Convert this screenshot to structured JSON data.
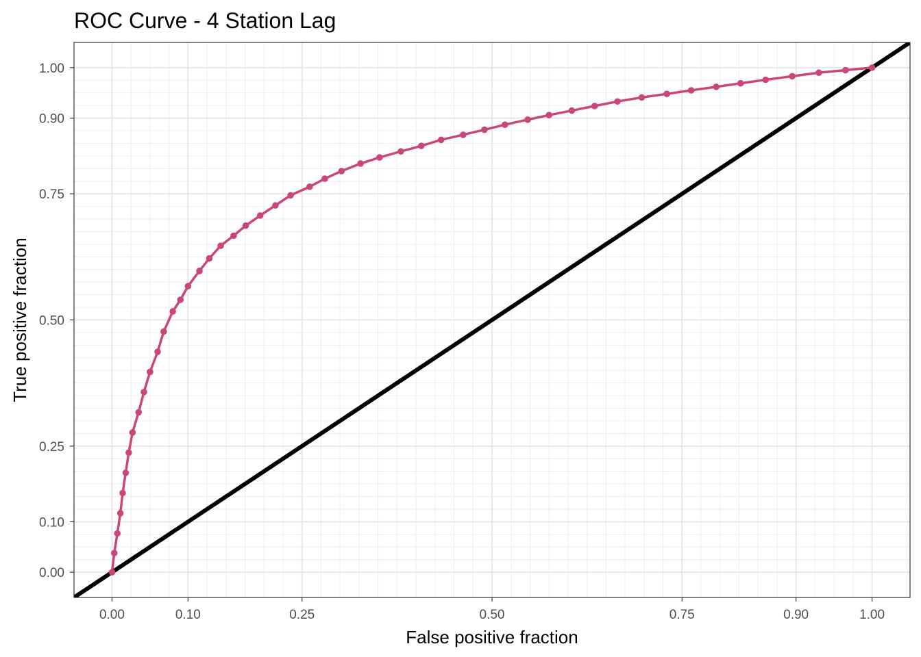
{
  "chart_data": {
    "type": "line",
    "title": "ROC Curve - 4 Station Lag",
    "xlabel": "False positive fraction",
    "ylabel": "True positive fraction",
    "xlim": [
      -0.05,
      1.05
    ],
    "ylim": [
      -0.05,
      1.05
    ],
    "x_ticks": [
      0.0,
      0.1,
      0.25,
      0.5,
      0.75,
      0.9,
      1.0
    ],
    "x_tick_labels": [
      "0.00",
      "0.10",
      "0.25",
      "0.50",
      "0.75",
      "0.90",
      "1.00"
    ],
    "y_ticks": [
      0.0,
      0.1,
      0.25,
      0.5,
      0.75,
      0.9,
      1.0
    ],
    "y_tick_labels": [
      "0.00",
      "0.10",
      "0.25",
      "0.50",
      "0.75",
      "0.90",
      "1.00"
    ],
    "grid": true,
    "legend": "none",
    "series": [
      {
        "color": "#c9457a",
        "x": [
          0.0,
          0.003,
          0.007,
          0.011,
          0.014,
          0.018,
          0.022,
          0.027,
          0.035,
          0.042,
          0.05,
          0.06,
          0.068,
          0.08,
          0.09,
          0.1,
          0.115,
          0.128,
          0.143,
          0.16,
          0.176,
          0.195,
          0.215,
          0.235,
          0.26,
          0.28,
          0.302,
          0.327,
          0.352,
          0.38,
          0.407,
          0.433,
          0.462,
          0.49,
          0.517,
          0.547,
          0.575,
          0.605,
          0.635,
          0.665,
          0.697,
          0.73,
          0.762,
          0.795,
          0.827,
          0.86,
          0.895,
          0.93,
          0.965,
          1.0
        ],
        "y": [
          0.0,
          0.038,
          0.077,
          0.117,
          0.157,
          0.197,
          0.237,
          0.277,
          0.317,
          0.357,
          0.397,
          0.437,
          0.477,
          0.517,
          0.54,
          0.567,
          0.597,
          0.622,
          0.647,
          0.667,
          0.687,
          0.707,
          0.727,
          0.747,
          0.764,
          0.78,
          0.795,
          0.81,
          0.822,
          0.834,
          0.845,
          0.857,
          0.867,
          0.877,
          0.887,
          0.897,
          0.906,
          0.915,
          0.924,
          0.933,
          0.941,
          0.948,
          0.955,
          0.962,
          0.969,
          0.976,
          0.983,
          0.99,
          0.995,
          1.0
        ]
      },
      {
        "color": "#000000",
        "x": [
          -0.05,
          1.05
        ],
        "y": [
          -0.05,
          1.05
        ]
      }
    ]
  }
}
